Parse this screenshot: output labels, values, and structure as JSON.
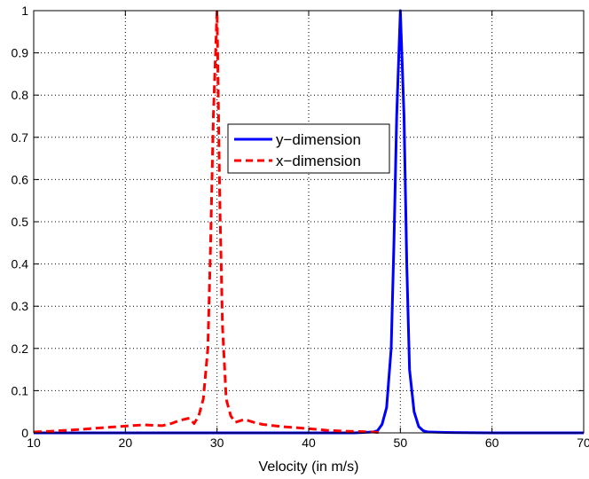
{
  "chart_data": {
    "type": "line",
    "title": "",
    "xlabel": "Velocity (in m/s)",
    "ylabel": "",
    "xlim": [
      10,
      70
    ],
    "ylim": [
      0,
      1
    ],
    "x_ticks": [
      10,
      20,
      30,
      40,
      50,
      60,
      70
    ],
    "y_ticks": [
      0,
      0.1,
      0.2,
      0.3,
      0.4,
      0.5,
      0.6,
      0.7,
      0.8,
      0.9,
      1
    ],
    "x_tick_labels": [
      "10",
      "20",
      "30",
      "40",
      "50",
      "60",
      "70"
    ],
    "y_tick_labels": [
      "0",
      "0.1",
      "0.2",
      "0.3",
      "0.4",
      "0.5",
      "0.6",
      "0.7",
      "0.8",
      "0.9",
      "1"
    ],
    "grid": true,
    "legend_position": "center",
    "series": [
      {
        "name": "y−dimension",
        "color": "#0000ff",
        "style": "solid",
        "x": [
          10,
          20,
          30,
          40,
          45,
          47,
          47.5,
          48,
          48.5,
          49,
          49.3,
          49.6,
          50,
          50.4,
          50.7,
          51,
          51.5,
          52,
          52.5,
          53,
          55,
          60,
          70
        ],
        "y": [
          0,
          0,
          0,
          0,
          0,
          0.002,
          0.005,
          0.02,
          0.06,
          0.2,
          0.45,
          0.75,
          1.0,
          0.75,
          0.4,
          0.15,
          0.05,
          0.015,
          0.005,
          0.002,
          0.001,
          0,
          0
        ]
      },
      {
        "name": "x−dimension",
        "color": "#ff0000",
        "style": "dashed",
        "x": [
          10,
          12,
          15,
          18,
          20,
          22,
          24,
          25,
          26,
          27,
          27.5,
          28,
          28.5,
          29,
          29.3,
          29.6,
          30,
          30.3,
          30.6,
          31,
          31.5,
          32,
          33,
          34,
          35,
          37,
          40,
          42,
          44,
          46,
          47,
          48
        ],
        "y": [
          0.002,
          0.004,
          0.008,
          0.013,
          0.016,
          0.019,
          0.017,
          0.022,
          0.03,
          0.035,
          0.022,
          0.04,
          0.08,
          0.2,
          0.45,
          0.75,
          1.0,
          0.55,
          0.25,
          0.08,
          0.04,
          0.025,
          0.032,
          0.025,
          0.02,
          0.015,
          0.01,
          0.006,
          0.004,
          0.003,
          0.002,
          0
        ]
      }
    ]
  }
}
